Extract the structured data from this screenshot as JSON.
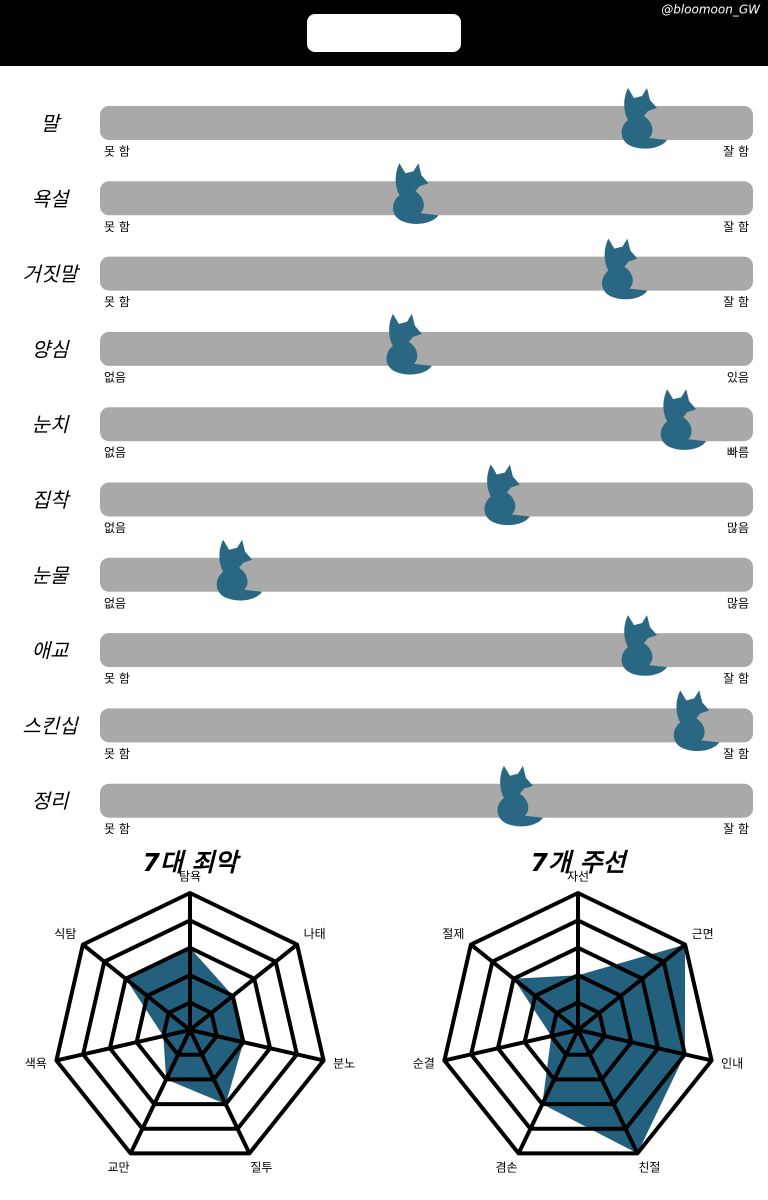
{
  "header": {
    "watermark": "@bloomoon_GW"
  },
  "sliders": {
    "xlim": [
      0,
      100
    ],
    "color": "#2a6783",
    "items": [
      {
        "label": "말",
        "left": "못 함",
        "right": "잘 함",
        "value": 83
      },
      {
        "label": "욕설",
        "left": "못 함",
        "right": "잘 함",
        "value": 48
      },
      {
        "label": "거짓말",
        "left": "못 함",
        "right": "잘 함",
        "value": 80
      },
      {
        "label": "양심",
        "left": "없음",
        "right": "있음",
        "value": 47
      },
      {
        "label": "눈치",
        "left": "없음",
        "right": "빠름",
        "value": 89
      },
      {
        "label": "집착",
        "left": "없음",
        "right": "많음",
        "value": 62
      },
      {
        "label": "눈물",
        "left": "없음",
        "right": "많음",
        "value": 21
      },
      {
        "label": "애교",
        "left": "못 함",
        "right": "잘 함",
        "value": 83
      },
      {
        "label": "스킨십",
        "left": "못 함",
        "right": "잘 함",
        "value": 91
      },
      {
        "label": "정리",
        "left": "못 함",
        "right": "잘 함",
        "value": 64
      }
    ]
  },
  "radars": [
    {
      "type": "radar",
      "title": "7대 죄악",
      "axes": [
        "탐욕",
        "나태",
        "분노",
        "질투",
        "교만",
        "색욕",
        "식탐"
      ],
      "values": [
        3,
        2,
        2,
        3,
        2,
        1,
        3
      ],
      "rlim": [
        0,
        5
      ],
      "rticks": [
        1,
        2,
        3,
        4,
        5
      ],
      "color": "#23607e"
    },
    {
      "type": "radar",
      "title": "7개 주선",
      "axes": [
        "자선",
        "근면",
        "인내",
        "친절",
        "겸손",
        "순결",
        "절제"
      ],
      "values": [
        2,
        5,
        4,
        5,
        3,
        1,
        3
      ],
      "rlim": [
        0,
        5
      ],
      "rticks": [
        1,
        2,
        3,
        4,
        5
      ],
      "color": "#23607e"
    }
  ]
}
